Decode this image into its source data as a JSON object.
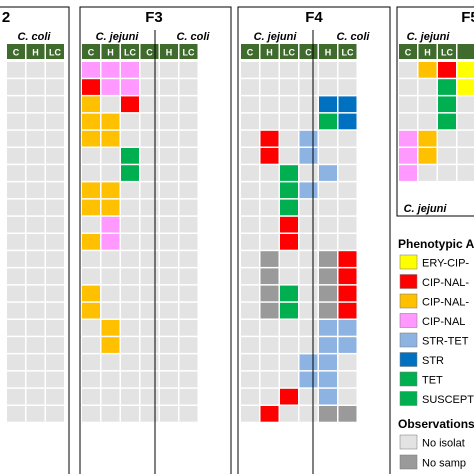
{
  "farm_labels": [
    "2",
    "F3",
    "F4",
    "F5"
  ],
  "species": {
    "jejuni": "C. jejuni",
    "coli": "C. coli"
  },
  "col_headers": [
    "C",
    "H",
    "LC"
  ],
  "colors": {
    "header_green": "#3f6b2d",
    "cell_empty": "#e3e3e3",
    "no_sample": "#9a9a9a",
    "ERY-CIP-": "#ffff00",
    "CIP-NAL-STR": "#ff0000",
    "CIP-NAL-TET": "#ffc000",
    "CIP-NAL": "#ff99ff",
    "STR-TET": "#8db3e2",
    "STR": "#0070c0",
    "TET": "#00b050",
    "SUSCEPT": "#00b050"
  },
  "legend": {
    "title": "Phenotypic A",
    "items": [
      {
        "label": "ERY-CIP-",
        "key": "ERY-CIP-"
      },
      {
        "label": "CIP-NAL-",
        "key": "CIP-NAL-STR"
      },
      {
        "label": "CIP-NAL-",
        "key": "CIP-NAL-TET"
      },
      {
        "label": "CIP-NAL",
        "key": "CIP-NAL"
      },
      {
        "label": "STR-TET",
        "key": "STR-TET"
      },
      {
        "label": "STR",
        "key": "STR"
      },
      {
        "label": "TET",
        "key": "TET"
      },
      {
        "label": "SUSCEPT",
        "key": "SUSCEPT"
      }
    ],
    "obs_title": "Observations",
    "obs_items": [
      {
        "label": "No isolat",
        "key": "cell_empty"
      },
      {
        "label": "No samp",
        "key": "no_sample"
      }
    ]
  },
  "panel_f2": {
    "rows": 21,
    "headers": [
      "C",
      "H",
      "LC"
    ]
  },
  "panel_f3": {
    "rows": 21,
    "cells": [
      [
        "CIP-NAL",
        "CIP-NAL",
        "CIP-NAL",
        null,
        null,
        null
      ],
      [
        "CIP-NAL-STR",
        "CIP-NAL",
        "CIP-NAL",
        null,
        null,
        null
      ],
      [
        "CIP-NAL-TET",
        null,
        "CIP-NAL-STR",
        null,
        null,
        null
      ],
      [
        "CIP-NAL-TET",
        "CIP-NAL-TET",
        null,
        null,
        null,
        null
      ],
      [
        "CIP-NAL-TET",
        "CIP-NAL-TET",
        null,
        null,
        null,
        null
      ],
      [
        null,
        null,
        "TET",
        null,
        null,
        null
      ],
      [
        null,
        null,
        "TET",
        null,
        null,
        null
      ],
      [
        "CIP-NAL-TET",
        "CIP-NAL-TET",
        null,
        null,
        null,
        null
      ],
      [
        "CIP-NAL-TET",
        "CIP-NAL-TET",
        null,
        null,
        null,
        null
      ],
      [
        null,
        "CIP-NAL",
        null,
        null,
        null,
        null
      ],
      [
        "CIP-NAL-TET",
        "CIP-NAL",
        null,
        null,
        null,
        null
      ],
      [
        null,
        null,
        null,
        null,
        null,
        null
      ],
      [
        null,
        null,
        null,
        null,
        null,
        null
      ],
      [
        "CIP-NAL-TET",
        null,
        null,
        null,
        null,
        null
      ],
      [
        "CIP-NAL-TET",
        null,
        null,
        null,
        null,
        null
      ],
      [
        null,
        "CIP-NAL-TET",
        null,
        null,
        null,
        null
      ],
      [
        null,
        "CIP-NAL-TET",
        null,
        null,
        null,
        null
      ],
      [
        null,
        null,
        null,
        null,
        null,
        null
      ],
      [
        null,
        null,
        null,
        null,
        null,
        null
      ],
      [
        null,
        null,
        null,
        null,
        null,
        null
      ],
      [
        null,
        null,
        null,
        null,
        null,
        null
      ]
    ]
  },
  "panel_f4": {
    "rows": 21,
    "cells": [
      [
        null,
        null,
        null,
        null,
        null,
        null
      ],
      [
        null,
        null,
        null,
        null,
        null,
        null
      ],
      [
        null,
        null,
        null,
        null,
        "STR",
        "STR"
      ],
      [
        null,
        null,
        null,
        null,
        "TET",
        "STR"
      ],
      [
        null,
        "CIP-NAL-STR",
        null,
        "STR-TET",
        null,
        null
      ],
      [
        null,
        "CIP-NAL-STR",
        null,
        "STR-TET",
        null,
        null
      ],
      [
        null,
        null,
        "TET",
        null,
        "STR-TET",
        null
      ],
      [
        null,
        null,
        "TET",
        "STR-TET",
        null,
        null
      ],
      [
        null,
        null,
        "TET",
        null,
        null,
        null
      ],
      [
        null,
        null,
        "CIP-NAL-STR",
        null,
        null,
        null
      ],
      [
        null,
        null,
        "CIP-NAL-STR",
        null,
        null,
        null
      ],
      [
        null,
        "no_sample",
        null,
        null,
        "no_sample",
        "CIP-NAL-STR"
      ],
      [
        null,
        "no_sample",
        null,
        null,
        "no_sample",
        "CIP-NAL-STR"
      ],
      [
        null,
        "no_sample",
        "TET",
        null,
        "no_sample",
        "CIP-NAL-STR"
      ],
      [
        null,
        "no_sample",
        "TET",
        null,
        "no_sample",
        "CIP-NAL-STR"
      ],
      [
        null,
        null,
        null,
        null,
        "STR-TET",
        "STR-TET"
      ],
      [
        null,
        null,
        null,
        null,
        "STR-TET",
        "STR-TET"
      ],
      [
        null,
        null,
        null,
        "STR-TET",
        "STR-TET",
        null
      ],
      [
        null,
        null,
        null,
        "STR-TET",
        "STR-TET",
        null
      ],
      [
        null,
        null,
        "CIP-NAL-STR",
        null,
        "STR-TET",
        null
      ],
      [
        null,
        "CIP-NAL-STR",
        null,
        null,
        "no_sample",
        "no_sample"
      ]
    ]
  },
  "panel_f5": {
    "rows": 7,
    "cells": [
      [
        null,
        "CIP-NAL-TET",
        "CIP-NAL-STR",
        "ERY-CIP-"
      ],
      [
        null,
        null,
        "TET",
        "ERY-CIP-"
      ],
      [
        null,
        null,
        "TET",
        null
      ],
      [
        null,
        null,
        "TET",
        null
      ],
      [
        "CIP-NAL",
        "CIP-NAL-TET",
        null,
        null
      ],
      [
        "CIP-NAL",
        "CIP-NAL-TET",
        null,
        null
      ],
      [
        "CIP-NAL",
        null,
        null,
        null
      ]
    ]
  }
}
